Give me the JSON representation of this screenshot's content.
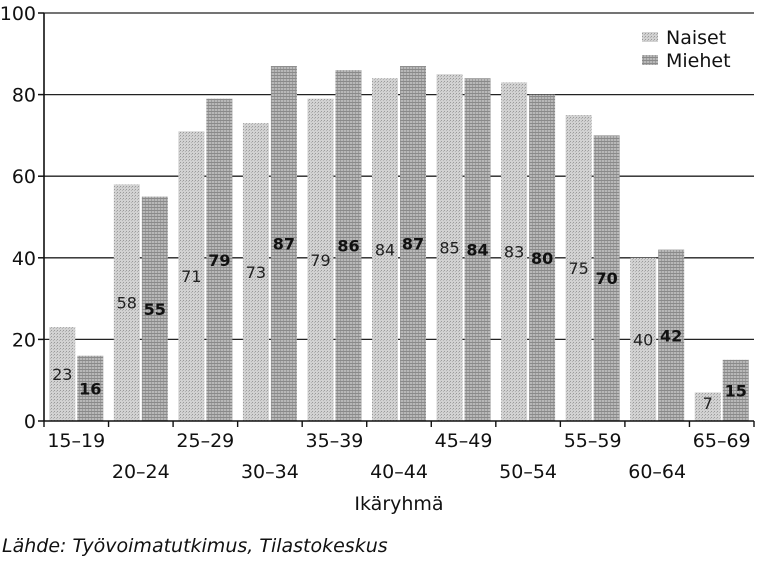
{
  "chart_data": {
    "type": "bar",
    "categories": [
      "15–19",
      "20–24",
      "25–29",
      "30–34",
      "35–39",
      "40–44",
      "45–49",
      "50–54",
      "55–59",
      "60–64",
      "65–69"
    ],
    "series": [
      {
        "name": "Naiset",
        "values": [
          23,
          58,
          71,
          73,
          79,
          84,
          85,
          83,
          75,
          40,
          7
        ],
        "color": "#c8c8c8"
      },
      {
        "name": "Miehet",
        "values": [
          16,
          55,
          79,
          87,
          86,
          87,
          84,
          80,
          70,
          42,
          15
        ],
        "color": "#a8a8a8"
      }
    ],
    "title": "",
    "xlabel": "Ikäryhmä",
    "ylabel": "",
    "ylim": [
      0,
      100
    ],
    "yticks": [
      0,
      20,
      40,
      60,
      80,
      100
    ],
    "grid": true,
    "legend": "top-right"
  },
  "source": "Lähde: Työvoimatutkimus, Tilastokeskus"
}
